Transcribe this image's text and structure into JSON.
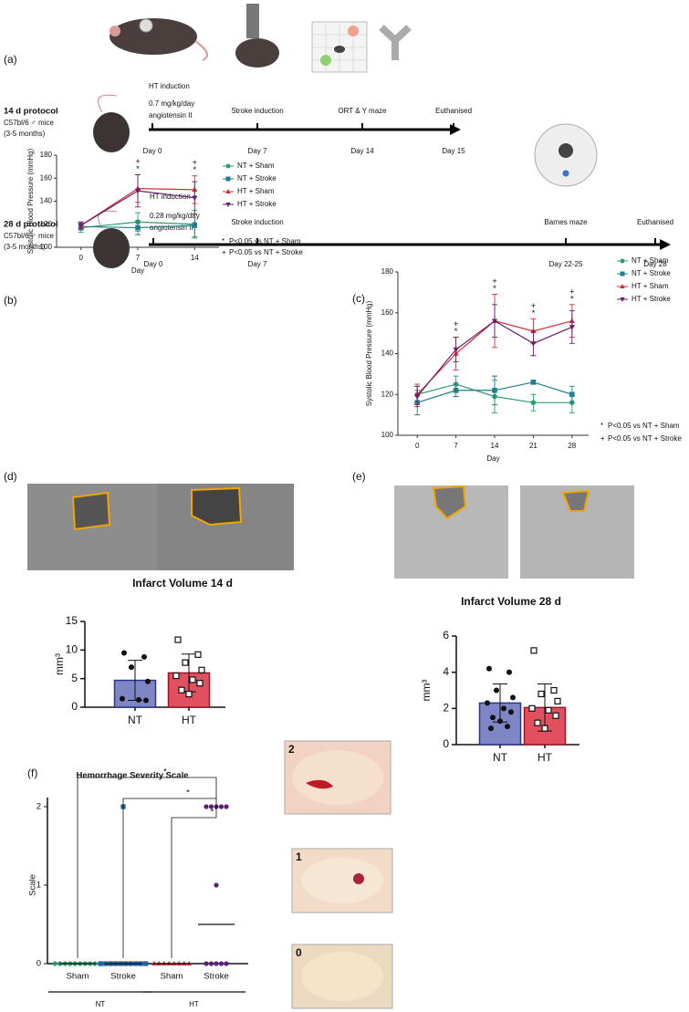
{
  "panel_labels": [
    "(a)",
    "(b)",
    "(c)",
    "(d)",
    "(e)",
    "(f)"
  ],
  "timelines": [
    {
      "title": "14 d protocol",
      "strain": "C57bl/6 ♂ mice",
      "age": "(3-5 months)",
      "events": [
        {
          "notes": [
            "HT induction",
            "0.7 mg/kg/day",
            "angiotensin II"
          ],
          "day": "Day 0"
        },
        {
          "notes": [
            "Stroke induction"
          ],
          "day": "Day 7"
        },
        {
          "notes": [
            "ORT & Y maze"
          ],
          "day": "Day 14"
        },
        {
          "notes": [
            "Euthanised"
          ],
          "day": "Day 15"
        }
      ]
    },
    {
      "title": "28 d protocol",
      "strain": "C57bl/6 ♂ mice",
      "age": "(3-5 months)",
      "events": [
        {
          "notes": [
            "HT induction",
            "0.28 mg/kg/day",
            "angiotensin II"
          ],
          "day": "Day 0"
        },
        {
          "notes": [
            "Stroke induction"
          ],
          "day": "Day 7"
        },
        {
          "notes": [
            "Barnes maze"
          ],
          "day": "Day 22-25"
        },
        {
          "notes": [
            "Euthanised"
          ],
          "day": "Day 28"
        }
      ]
    }
  ],
  "photos": [
    {
      "label": "2"
    },
    {
      "label": "1"
    },
    {
      "label": "0"
    }
  ],
  "chart_data": [
    {
      "type": "line",
      "x_label": "Day",
      "y_label": "Systolic Blood Pressure (mmHg)",
      "x": [
        0,
        7,
        14
      ],
      "xlim": [
        -3,
        17
      ],
      "xticks": [
        0,
        7,
        14
      ],
      "ylim": [
        100,
        180
      ],
      "yticks": [
        100,
        120,
        140,
        160,
        180
      ],
      "series": [
        {
          "name": "NT + Sham",
          "color": "#2e9e6e",
          "marker": "circle",
          "values": [
            117,
            122,
            120
          ],
          "errors": [
            4,
            8,
            12
          ]
        },
        {
          "name": "NT + Stroke",
          "color": "#1f7f8c",
          "marker": "square",
          "values": [
            118,
            117,
            119
          ],
          "errors": [
            3,
            6,
            10
          ]
        },
        {
          "name": "HT + Sham",
          "color": "#d0303a",
          "marker": "triangle-up",
          "values": [
            119,
            151,
            150
          ],
          "errors": [
            3,
            12,
            12
          ]
        },
        {
          "name": "HT + Stroke",
          "color": "#6b1f6e",
          "marker": "triangle-down",
          "values": [
            119,
            149,
            143
          ],
          "errors": [
            3,
            14,
            14
          ]
        }
      ],
      "sig_marks": [
        {
          "x": 7,
          "symbols": [
            "+",
            "*"
          ]
        },
        {
          "x": 14,
          "symbols": [
            "+",
            "*"
          ]
        }
      ],
      "footnotes": [
        {
          "symbol": "*",
          "text": "P<0.05 vs NT + Sham"
        },
        {
          "symbol": "+",
          "text": "P<0.05 vs NT + Stroke"
        }
      ]
    },
    {
      "type": "line",
      "x_label": "Day",
      "y_label": "Systolic Blood Pressure (mmHg)",
      "x": [
        0,
        7,
        14,
        21,
        28
      ],
      "xlim": [
        -3.5,
        31
      ],
      "xticks": [
        0,
        7,
        14,
        21,
        28
      ],
      "ylim": [
        100,
        180
      ],
      "yticks": [
        100,
        120,
        140,
        160,
        180
      ],
      "series": [
        {
          "name": "NT + Sham",
          "color": "#2e9e6e",
          "marker": "circle",
          "values": [
            120,
            125,
            119,
            116,
            116
          ],
          "errors": [
            4,
            4,
            8,
            4,
            5
          ]
        },
        {
          "name": "NT + Stroke",
          "color": "#1f7f8c",
          "marker": "square",
          "values": [
            116,
            122,
            122,
            126,
            120
          ],
          "errors": [
            6,
            3,
            7,
            1,
            4
          ]
        },
        {
          "name": "HT + Sham",
          "color": "#d0303a",
          "marker": "triangle-up",
          "values": [
            120,
            140,
            156,
            151,
            156
          ],
          "errors": [
            5,
            8,
            13,
            6,
            8
          ]
        },
        {
          "name": "HT + Stroke",
          "color": "#6b1f6e",
          "marker": "triangle-down",
          "values": [
            119,
            142,
            156,
            145,
            153
          ],
          "errors": [
            5,
            6,
            8,
            6,
            8
          ]
        }
      ],
      "sig_marks": [
        {
          "x": 7,
          "symbols": [
            "+",
            "*"
          ]
        },
        {
          "x": 14,
          "symbols": [
            "+",
            "*"
          ]
        },
        {
          "x": 21,
          "symbols": [
            "+",
            "*"
          ]
        },
        {
          "x": 28,
          "symbols": [
            "+",
            "*"
          ]
        }
      ],
      "footnotes": [
        {
          "symbol": "*",
          "text": "P<0.05 vs NT + Sham"
        },
        {
          "symbol": "+",
          "text": "P<0.05 vs NT + Stroke"
        }
      ]
    },
    {
      "type": "bar",
      "title": "Infarct Volume 14 d",
      "y_label": "mm³",
      "categories": [
        "NT",
        "HT"
      ],
      "values": [
        4.7,
        6.0
      ],
      "errors": [
        3.5,
        3.3
      ],
      "colors": [
        "#7f86c6",
        "#e0505e"
      ],
      "edge_colors": [
        "#2a3590",
        "#a01226"
      ],
      "markers": [
        "circle",
        "open-square"
      ],
      "points": [
        [
          9.5,
          8.8,
          7.0,
          4.5,
          1.5,
          1.3,
          1.2
        ],
        [
          11.8,
          9.2,
          7.8,
          6.5,
          5.5,
          4.8,
          4.2,
          3.0,
          2.3
        ]
      ],
      "ylim": [
        0,
        15
      ],
      "yticks": [
        0,
        5,
        10,
        15
      ]
    },
    {
      "type": "bar",
      "title": "Infarct Volume 28 d",
      "y_label": "mm³",
      "categories": [
        "NT",
        "HT"
      ],
      "values": [
        2.3,
        2.05
      ],
      "errors": [
        1.05,
        1.3
      ],
      "colors": [
        "#7f86c6",
        "#e0505e"
      ],
      "edge_colors": [
        "#2a3590",
        "#a01226"
      ],
      "markers": [
        "circle",
        "open-square"
      ],
      "points": [
        [
          4.2,
          4.0,
          3.0,
          2.6,
          2.3,
          2.0,
          1.8,
          1.5,
          1.3,
          1.0,
          0.9
        ],
        [
          5.2,
          3.0,
          2.8,
          2.4,
          2.0,
          1.9,
          1.6,
          1.2,
          0.9
        ]
      ],
      "ylim": [
        0,
        6
      ],
      "yticks": [
        0,
        2,
        4,
        6
      ]
    },
    {
      "type": "strip",
      "title": "Hemorrhage Severity Scale",
      "y_label": "Scale",
      "categories": [
        "Sham",
        "Stroke",
        "Sham",
        "Stroke"
      ],
      "groups": [
        {
          "label": "NT",
          "categories": [
            0,
            1
          ]
        },
        {
          "label": "HT",
          "categories": [
            2,
            3
          ]
        }
      ],
      "colors": [
        "#2e9e6e",
        "#1f5f9c",
        "#d0303a",
        "#5b1f7e"
      ],
      "markers": [
        "circle",
        "square",
        "triangle-up",
        "circle"
      ],
      "points": [
        [
          0,
          0,
          0,
          0,
          0,
          0,
          0,
          0,
          0,
          0
        ],
        [
          2,
          0,
          0,
          0,
          0,
          0,
          0,
          0,
          0,
          0,
          0
        ],
        [
          0,
          0,
          0,
          0,
          0,
          0,
          0,
          0
        ],
        [
          2,
          2,
          2,
          2,
          2,
          1,
          0,
          0,
          0,
          0,
          0
        ]
      ],
      "center_lines": [
        0,
        0,
        0,
        0.5
      ],
      "significance": [
        {
          "from": 0,
          "to": 3,
          "label": "*"
        },
        {
          "from": 1,
          "to": 3,
          "label": "*"
        },
        {
          "from": 2,
          "to": 3,
          "label": "*"
        }
      ],
      "ylim": [
        0,
        2
      ],
      "yticks": [
        0,
        1,
        2
      ]
    }
  ]
}
